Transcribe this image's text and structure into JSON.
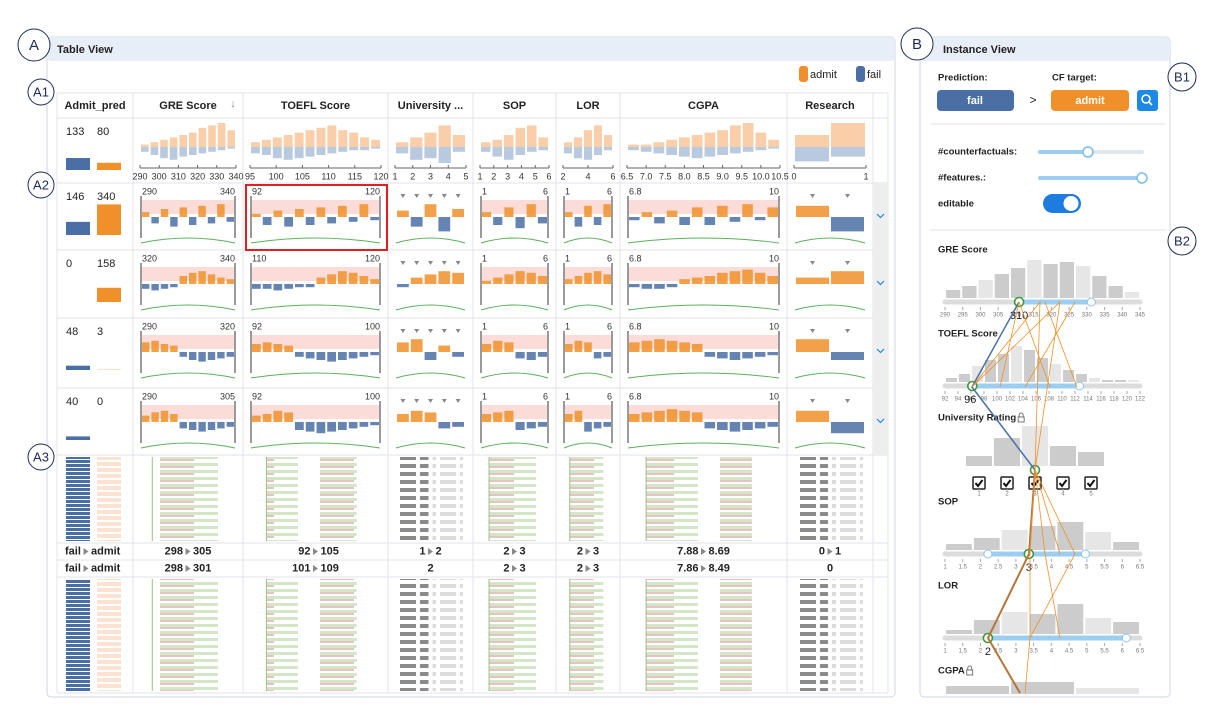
{
  "panels": {
    "A": "A",
    "A1": "A1",
    "A2": "A2",
    "A3": "A3",
    "B": "B",
    "B1": "B1",
    "B2": "B2"
  },
  "table_view": {
    "title": "Table View",
    "legend": [
      "admit",
      "fail"
    ],
    "sort_icon": "↓",
    "pred_column": "Admit_pred",
    "columns": [
      {
        "name": "GRE Score",
        "ticks": [
          "290",
          "300",
          "310",
          "320",
          "330",
          "340"
        ],
        "admit": [
          0.1,
          0.2,
          0.3,
          0.4,
          0.5,
          0.6,
          0.8,
          0.9,
          1,
          0.7
        ],
        "fail": [
          0.3,
          0.5,
          0.7,
          0.8,
          0.6,
          0.5,
          0.4,
          0.3,
          0.2,
          0.1
        ]
      },
      {
        "name": "TOEFL Score",
        "ticks": [
          "95",
          "100",
          "105",
          "110",
          "115",
          "120"
        ],
        "admit": [
          0.2,
          0.3,
          0.4,
          0.5,
          0.6,
          0.7,
          0.8,
          0.9,
          0.7,
          0.6,
          0.4,
          0.3
        ],
        "fail": [
          0.4,
          0.5,
          0.7,
          0.8,
          0.7,
          0.6,
          0.5,
          0.4,
          0.3,
          0.2,
          0.2,
          0.1
        ]
      },
      {
        "name": "University ...",
        "ticks": [
          "1",
          "2",
          "3",
          "4",
          "5"
        ],
        "admit": [
          0.2,
          0.4,
          0.6,
          0.9,
          0.5
        ],
        "fail": [
          0.4,
          0.8,
          0.7,
          1,
          0.3
        ]
      },
      {
        "name": "SOP",
        "ticks": [
          "1",
          "2",
          "3",
          "4",
          "5",
          "6"
        ],
        "admit": [
          0.2,
          0.3,
          0.5,
          0.8,
          0.9,
          0.4
        ],
        "fail": [
          0.3,
          0.6,
          0.8,
          0.5,
          0.3,
          0.2
        ]
      },
      {
        "name": "LOR",
        "ticks": [
          "2",
          "4",
          "6"
        ],
        "admit": [
          0.2,
          0.4,
          0.7,
          0.9,
          0.5
        ],
        "fail": [
          0.4,
          0.7,
          0.8,
          0.5,
          0.2
        ]
      },
      {
        "name": "CGPA",
        "ticks": [
          "6.5",
          "7.0",
          "7.5",
          "8.0",
          "8.5",
          "9.0",
          "9.5",
          "10.0",
          "10.5"
        ],
        "admit": [
          0.1,
          0.1,
          0.2,
          0.3,
          0.4,
          0.5,
          0.6,
          0.7,
          0.9,
          1,
          0.6,
          0.3
        ],
        "fail": [
          0.2,
          0.3,
          0.4,
          0.5,
          0.6,
          0.7,
          0.6,
          0.5,
          0.4,
          0.3,
          0.2,
          0.1
        ]
      },
      {
        "name": "Research",
        "ticks": [
          "0",
          "1"
        ],
        "admit": [
          0.5,
          1
        ],
        "fail": [
          0.9,
          0.6
        ]
      }
    ],
    "summary_counts": [
      133,
      80
    ],
    "groups": [
      {
        "counts": [
          146,
          340
        ],
        "ranges": [
          [
            "290",
            "340"
          ],
          [
            "92",
            "120"
          ],
          null,
          [
            "1",
            "6"
          ],
          [
            "1",
            "6"
          ],
          [
            "6.8",
            "10"
          ],
          null
        ],
        "bars": [
          [
            0.3,
            -0.4,
            0.5,
            -0.6,
            0.6,
            -0.5,
            0.7,
            -0.4,
            0.8,
            -0.3
          ],
          [
            0.2,
            -0.5,
            0.4,
            -0.6,
            0.5,
            -0.5,
            0.6,
            -0.4,
            0.7,
            -0.3,
            0.8,
            -0.2
          ],
          [
            0.4,
            -0.6,
            0.8,
            -0.9,
            0.5
          ],
          [
            0.3,
            -0.5,
            0.6,
            -0.7,
            0.8,
            -0.4
          ],
          [
            0.3,
            -0.6,
            0.7,
            -0.5,
            0.8
          ],
          [
            -0.2,
            0.3,
            -0.4,
            0.4,
            -0.5,
            0.6,
            -0.5,
            0.7,
            -0.3,
            0.8,
            -0.2,
            0.6
          ],
          [
            0.7,
            -0.9
          ]
        ]
      },
      {
        "counts": [
          0,
          158
        ],
        "ranges": [
          [
            "320",
            "340"
          ],
          [
            "110",
            "120"
          ],
          null,
          [
            "1",
            "6"
          ],
          [
            "1",
            "6"
          ],
          [
            "6.8",
            "10"
          ],
          null
        ],
        "bars": [
          [
            -0.3,
            -0.4,
            -0.3,
            -0.2,
            0.5,
            0.7,
            0.8,
            0.6,
            0.4,
            0.3
          ],
          [
            -0.3,
            -0.3,
            -0.4,
            -0.3,
            -0.2,
            -0.2,
            0.4,
            0.6,
            0.8,
            0.7,
            0.5,
            0.3
          ],
          [
            -0.2,
            0.4,
            0.6,
            0.8,
            0.7
          ],
          [
            0.2,
            0.4,
            0.6,
            0.8,
            0.7,
            0.5
          ],
          [
            0.3,
            0.5,
            0.7,
            0.8,
            0.6
          ],
          [
            -0.2,
            -0.3,
            -0.3,
            -0.2,
            0.3,
            0.4,
            0.5,
            0.7,
            0.8,
            0.9,
            0.7,
            0.5
          ],
          [
            0.4,
            0.8
          ]
        ]
      },
      {
        "counts": [
          48,
          3
        ],
        "ranges": [
          [
            "290",
            "320"
          ],
          [
            "92",
            "100"
          ],
          null,
          [
            "1",
            "6"
          ],
          [
            "1",
            "6"
          ],
          [
            "6.8",
            "10"
          ],
          null
        ],
        "bars": [
          [
            0.6,
            0.7,
            0.5,
            0.4,
            -0.3,
            -0.5,
            -0.6,
            -0.5,
            -0.4,
            -0.3
          ],
          [
            0.5,
            0.6,
            0.5,
            0.4,
            -0.3,
            -0.4,
            -0.5,
            -0.6,
            -0.5,
            -0.4,
            -0.3,
            -0.2
          ],
          [
            0.6,
            0.8,
            -0.5,
            0.4,
            -0.3
          ],
          [
            0.5,
            0.7,
            0.6,
            -0.4,
            -0.5,
            -0.3
          ],
          [
            0.5,
            0.7,
            0.6,
            -0.4,
            -0.3
          ],
          [
            0.6,
            0.7,
            0.8,
            0.7,
            0.6,
            0.5,
            -0.3,
            -0.4,
            -0.5,
            -0.4,
            -0.3,
            -0.2
          ],
          [
            0.8,
            -0.5
          ]
        ]
      },
      {
        "counts": [
          40,
          0
        ],
        "ranges": [
          [
            "290",
            "305"
          ],
          [
            "92",
            "100"
          ],
          null,
          [
            "1",
            "6"
          ],
          [
            "1",
            "6"
          ],
          [
            "6.8",
            "10"
          ],
          null
        ],
        "bars": [
          [
            0.4,
            0.6,
            0.7,
            0.5,
            -0.4,
            -0.5,
            -0.6,
            -0.5,
            -0.4,
            -0.3
          ],
          [
            0.4,
            0.5,
            0.7,
            0.6,
            -0.5,
            -0.6,
            -0.7,
            -0.6,
            -0.5,
            -0.4,
            -0.3,
            -0.2
          ],
          [
            0.5,
            0.7,
            0.6,
            -0.4,
            -0.3
          ],
          [
            0.5,
            0.6,
            0.7,
            -0.5,
            -0.4,
            -0.3
          ],
          [
            0.5,
            0.7,
            -0.6,
            -0.4,
            -0.3
          ],
          [
            0.5,
            0.6,
            0.7,
            0.8,
            0.7,
            0.6,
            -0.4,
            -0.5,
            -0.6,
            -0.5,
            -0.4,
            -0.3
          ],
          [
            0.7,
            -0.7
          ]
        ]
      }
    ],
    "instances": [
      {
        "pred": "fail",
        "target": "admit",
        "values": [
          [
            "298",
            "305"
          ],
          [
            "92",
            "105"
          ],
          [
            "1",
            "2"
          ],
          [
            "2",
            "3"
          ],
          [
            "2",
            "3"
          ],
          [
            "7.88",
            "8.69"
          ],
          [
            "0",
            "1"
          ]
        ]
      },
      {
        "pred": "fail",
        "target": "admit",
        "values": [
          [
            "298",
            "301"
          ],
          [
            "101",
            "109"
          ],
          [
            "2"
          ],
          [
            "2",
            "3"
          ],
          [
            "2",
            "3"
          ],
          [
            "7.86",
            "8.49"
          ],
          [
            "0"
          ]
        ]
      }
    ]
  },
  "instance_view": {
    "title": "Instance View",
    "prediction_label": "Prediction:",
    "cf_label": "CF target:",
    "prediction": "fail",
    "cf_target": "admit",
    "arrow": ">",
    "controls": [
      "#counterfactuals:",
      "#features.:",
      "editable"
    ],
    "features": [
      {
        "name": "GRE Score",
        "value": "310",
        "hist": [
          0.2,
          0.3,
          0.45,
          0.6,
          0.75,
          0.95,
          0.85,
          0.9,
          0.8,
          0.55,
          0.3,
          0.15
        ],
        "ticks": [
          "290",
          "295",
          "300",
          "305",
          "310",
          "315",
          "320",
          "325",
          "330",
          "335",
          "340",
          "345"
        ]
      },
      {
        "name": "TOEFL Score",
        "value": "96",
        "hist": [
          0.1,
          0.2,
          0.4,
          0.55,
          0.7,
          0.9,
          0.8,
          0.6,
          0.45,
          0.3,
          0.2,
          0.1,
          0.05,
          0.05,
          0.05
        ],
        "ticks": [
          "92",
          "94",
          "96",
          "98",
          "100",
          "102",
          "104",
          "106",
          "108",
          "110",
          "112",
          "114",
          "116",
          "118",
          "120",
          "122"
        ]
      },
      {
        "name": "University Rating",
        "value": "3",
        "hist": [
          0.25,
          0.7,
          1,
          0.5,
          0.35
        ],
        "ticks": [
          "1",
          "2",
          "3",
          "4",
          "5"
        ]
      },
      {
        "name": "SOP",
        "value": "3",
        "hist": [
          0.15,
          0.3,
          0.5,
          0.6,
          0.7,
          0.45,
          0.2
        ],
        "ticks": [
          "1",
          "1.5",
          "2",
          "2.5",
          "3",
          "3.5",
          "4",
          "4.5",
          "5",
          "5.5",
          "6",
          "6.5"
        ]
      },
      {
        "name": "LOR",
        "value": "2",
        "hist": [
          0.1,
          0.35,
          0.55,
          0.5,
          0.75,
          0.4,
          0.3
        ],
        "ticks": [
          "1",
          "1.5",
          "2",
          "2.5",
          "3",
          "3.5",
          "4",
          "4.5",
          "5",
          "5.5",
          "6",
          "6.5"
        ]
      },
      {
        "name": "CGPA",
        "hist": [
          0.2,
          0.3,
          0.15
        ]
      }
    ]
  }
}
